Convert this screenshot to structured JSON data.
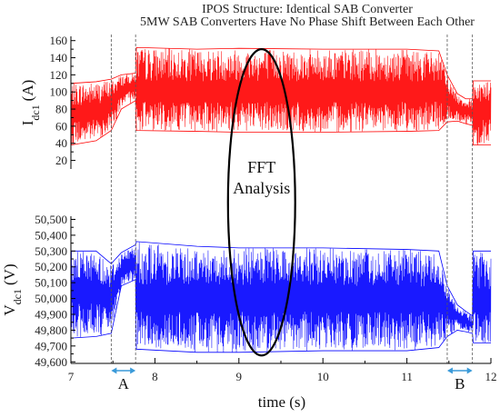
{
  "title": {
    "line1": "IPOS Structure: Identical SAB Converter",
    "line2": "5MW SAB Converters Have No Phase Shift Between Each Other"
  },
  "colors": {
    "current": "#ff0000",
    "voltage": "#0000ff",
    "axis": "#000000",
    "marker_arrow": "#3a9ad9"
  },
  "annotation": {
    "line1": "FFT",
    "line2": "Analysis"
  },
  "chart_data": [
    {
      "type": "line",
      "name": "current",
      "ylabel_main": "I",
      "ylabel_sub": "dc1",
      "ylabel_unit": "(A)",
      "ylim": [
        10,
        165
      ],
      "yticks": [
        20,
        40,
        60,
        80,
        100,
        120,
        140,
        160
      ],
      "ytick_labels": [
        "20",
        "40",
        "60",
        "80",
        "100",
        "120",
        "140",
        "160"
      ],
      "xlim": [
        7,
        12
      ],
      "envelope": {
        "x": [
          7.0,
          7.3,
          7.48,
          7.6,
          7.77,
          7.78,
          8.5,
          9.0,
          10.0,
          11.0,
          11.38,
          11.48,
          11.6,
          11.7,
          11.78,
          11.79,
          12.0
        ],
        "mean": [
          74,
          76,
          85,
          102,
          108,
          100,
          100,
          100,
          100,
          100,
          100,
          92,
          82,
          78,
          75,
          80,
          80
        ],
        "lower": [
          38,
          43,
          55,
          80,
          90,
          55,
          54,
          53,
          53,
          54,
          55,
          65,
          66,
          63,
          61,
          38,
          38
        ],
        "upper": [
          110,
          112,
          115,
          120,
          122,
          152,
          150,
          151,
          150,
          150,
          148,
          120,
          98,
          92,
          92,
          113,
          113
        ]
      }
    },
    {
      "type": "line",
      "name": "voltage",
      "ylabel_main": "V",
      "ylabel_sub": "dc1",
      "ylabel_unit": "(V)",
      "ylim": [
        49590,
        50520
      ],
      "yticks": [
        49600,
        49700,
        49800,
        49900,
        50000,
        50100,
        50200,
        50300,
        50400,
        50500
      ],
      "ytick_labels": [
        "49,600",
        "49,700",
        "49,800",
        "49,900",
        "50,000",
        "50,100",
        "50,200",
        "50,300",
        "50,400",
        "50,500"
      ],
      "xlim": [
        7,
        12
      ],
      "envelope": {
        "x": [
          7.0,
          7.3,
          7.48,
          7.6,
          7.77,
          7.78,
          8.5,
          9.0,
          10.0,
          11.0,
          11.38,
          11.48,
          11.6,
          11.7,
          11.78,
          11.79,
          12.0
        ],
        "mean": [
          50050,
          50040,
          50010,
          50180,
          50240,
          50000,
          50000,
          50000,
          50000,
          50000,
          50000,
          49960,
          49890,
          49860,
          49830,
          49980,
          49980
        ],
        "lower": [
          49750,
          49760,
          49780,
          50080,
          50120,
          49680,
          49660,
          49660,
          49670,
          49670,
          49690,
          49760,
          49800,
          49790,
          49780,
          49720,
          49720
        ],
        "upper": [
          50300,
          50300,
          50220,
          50290,
          50340,
          50360,
          50330,
          50320,
          50320,
          50310,
          50300,
          50080,
          49960,
          49920,
          49890,
          50300,
          50300
        ]
      }
    }
  ],
  "xaxis": {
    "label": "time (s)",
    "ticks": [
      7,
      8,
      9,
      10,
      11,
      12
    ],
    "tick_labels": [
      "7",
      "8",
      "9",
      "10",
      "11",
      "12"
    ]
  },
  "markers": [
    {
      "label": "A",
      "x1": 7.48,
      "x2": 7.77
    },
    {
      "label": "B",
      "x1": 11.48,
      "x2": 11.78
    }
  ],
  "ellipse": {
    "cx": 9.27,
    "rx": 0.4,
    "y_top_current": 150,
    "y_bottom_voltage": 49640
  }
}
